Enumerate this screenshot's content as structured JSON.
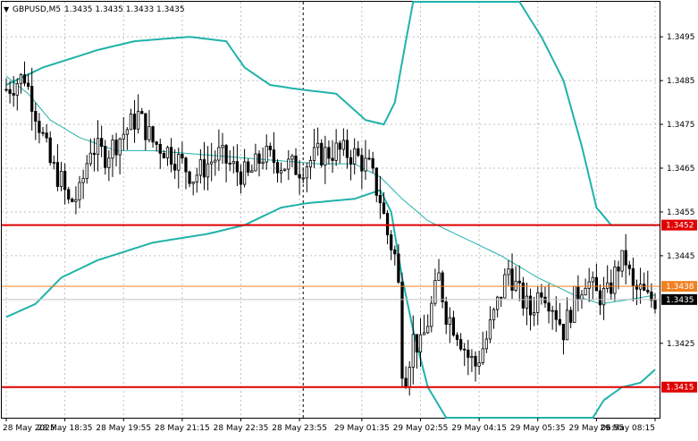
{
  "header": {
    "symbol": "GBPUSD,M5",
    "ohlc": "1.3435 1.3435 1.3433 1.3435"
  },
  "colors": {
    "background": "#ffffff",
    "candle": "#000000",
    "grid": "#c0c0c0",
    "band": "#20b2aa",
    "ma": "#20b2aa",
    "support_resistance": "#e00000",
    "pivot": "#f08020",
    "current_tag": "#000000"
  },
  "chart_data": {
    "type": "candlestick",
    "ylim": [
      1.3408,
      1.3503
    ],
    "y_ticks": [
      "1.3495",
      "1.3485",
      "1.3475",
      "1.3465",
      "1.3455",
      "1.3445",
      "1.3425"
    ],
    "x_ticks": [
      "28 May 2025",
      "28 May 18:35",
      "28 May 19:55",
      "28 May 21:15",
      "28 May 22:35",
      "28 May 23:55",
      "29 May 01:35",
      "29 May 02:55",
      "29 May 04:15",
      "29 May 05:35",
      "29 May 06:55",
      "29 May 08:15"
    ],
    "levels": [
      {
        "value": 1.3452,
        "label": "1.3452",
        "color": "#e00000"
      },
      {
        "value": 1.3438,
        "label": "1.3438",
        "color": "#f08020"
      },
      {
        "value": 1.3415,
        "label": "1.3415",
        "color": "#e00000"
      }
    ],
    "current_price": {
      "value": 1.3435,
      "label": "1.3435"
    },
    "vertical_marker_index": 81,
    "candle_count": 178,
    "close_path": [
      [
        0,
        1.3483
      ],
      [
        5,
        1.3486
      ],
      [
        8,
        1.3478
      ],
      [
        12,
        1.3466
      ],
      [
        15,
        1.3462
      ],
      [
        17,
        1.3457
      ],
      [
        20,
        1.3459
      ],
      [
        23,
        1.347
      ],
      [
        27,
        1.3468
      ],
      [
        32,
        1.3473
      ],
      [
        36,
        1.3477
      ],
      [
        40,
        1.3471
      ],
      [
        44,
        1.3469
      ],
      [
        48,
        1.3466
      ],
      [
        51,
        1.3463
      ],
      [
        55,
        1.3466
      ],
      [
        58,
        1.3468
      ],
      [
        62,
        1.3465
      ],
      [
        66,
        1.3463
      ],
      [
        70,
        1.3468
      ],
      [
        75,
        1.3466
      ],
      [
        80,
        1.3465
      ],
      [
        85,
        1.3468
      ],
      [
        90,
        1.3469
      ],
      [
        95,
        1.3468
      ],
      [
        99,
        1.3465
      ],
      [
        102,
        1.3458
      ],
      [
        104,
        1.345
      ],
      [
        106,
        1.3445
      ],
      [
        107,
        1.3438
      ],
      [
        108,
        1.342
      ],
      [
        109,
        1.3418
      ],
      [
        111,
        1.3426
      ],
      [
        113,
        1.3424
      ],
      [
        115,
        1.343
      ],
      [
        118,
        1.344
      ],
      [
        120,
        1.3432
      ],
      [
        123,
        1.3428
      ],
      [
        126,
        1.3422
      ],
      [
        128,
        1.342
      ],
      [
        131,
        1.3426
      ],
      [
        134,
        1.3434
      ],
      [
        137,
        1.3442
      ],
      [
        140,
        1.3436
      ],
      [
        143,
        1.3432
      ],
      [
        146,
        1.3438
      ],
      [
        149,
        1.3434
      ],
      [
        152,
        1.3428
      ],
      [
        155,
        1.3435
      ],
      [
        158,
        1.344
      ],
      [
        161,
        1.3436
      ],
      [
        164,
        1.3436
      ],
      [
        167,
        1.3443
      ],
      [
        169,
        1.3444
      ],
      [
        171,
        1.3437
      ],
      [
        173,
        1.3437
      ],
      [
        175,
        1.3435
      ],
      [
        177,
        1.3435
      ]
    ],
    "bollinger_upper": [
      [
        0,
        1.3484
      ],
      [
        10,
        1.3488
      ],
      [
        25,
        1.3492
      ],
      [
        35,
        1.3494
      ],
      [
        50,
        1.3495
      ],
      [
        60,
        1.3494
      ],
      [
        65,
        1.3488
      ],
      [
        72,
        1.3484
      ],
      [
        80,
        1.3483
      ],
      [
        90,
        1.3482
      ],
      [
        98,
        1.3476
      ],
      [
        103,
        1.3475
      ],
      [
        106,
        1.348
      ],
      [
        109,
        1.3494
      ],
      [
        111,
        1.3503
      ],
      [
        140,
        1.3503
      ],
      [
        146,
        1.3495
      ],
      [
        152,
        1.3485
      ],
      [
        157,
        1.347
      ],
      [
        161,
        1.3456
      ],
      [
        165,
        1.3452
      ],
      [
        172,
        1.3452
      ],
      [
        177,
        1.3452
      ]
    ],
    "bollinger_lower": [
      [
        0,
        1.3431
      ],
      [
        8,
        1.3434
      ],
      [
        15,
        1.344
      ],
      [
        25,
        1.3444
      ],
      [
        40,
        1.3448
      ],
      [
        55,
        1.345
      ],
      [
        65,
        1.3452
      ],
      [
        75,
        1.3456
      ],
      [
        82,
        1.3457
      ],
      [
        95,
        1.3458
      ],
      [
        102,
        1.346
      ],
      [
        105,
        1.3455
      ],
      [
        108,
        1.344
      ],
      [
        111,
        1.3428
      ],
      [
        115,
        1.3415
      ],
      [
        120,
        1.3408
      ],
      [
        160,
        1.3408
      ],
      [
        163,
        1.3412
      ],
      [
        168,
        1.3415
      ],
      [
        173,
        1.3416
      ],
      [
        177,
        1.3419
      ]
    ],
    "moving_average": [
      [
        0,
        1.3486
      ],
      [
        6,
        1.3482
      ],
      [
        12,
        1.3476
      ],
      [
        20,
        1.3472
      ],
      [
        30,
        1.3469
      ],
      [
        40,
        1.3469
      ],
      [
        55,
        1.3468
      ],
      [
        70,
        1.3467
      ],
      [
        85,
        1.3466
      ],
      [
        95,
        1.3466
      ],
      [
        102,
        1.3463
      ],
      [
        108,
        1.3458
      ],
      [
        115,
        1.3453
      ],
      [
        125,
        1.3449
      ],
      [
        135,
        1.3445
      ],
      [
        145,
        1.344
      ],
      [
        155,
        1.3436
      ],
      [
        162,
        1.3434
      ],
      [
        170,
        1.3435
      ],
      [
        177,
        1.3436
      ]
    ]
  }
}
